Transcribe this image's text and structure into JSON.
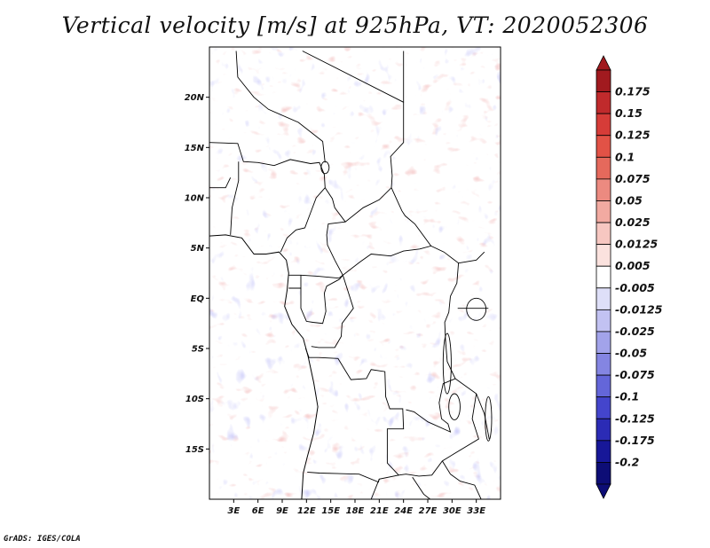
{
  "title": "Vertical velocity [m/s] at 925hPa, VT: 2020052306",
  "credit": "GrADS: IGES/COLA",
  "map": {
    "lon_range": [
      0,
      36
    ],
    "lat_range": [
      -20,
      25
    ],
    "lat_ticks": [
      {
        "value": 20,
        "label": "20N"
      },
      {
        "value": 15,
        "label": "15N"
      },
      {
        "value": 10,
        "label": "10N"
      },
      {
        "value": 5,
        "label": "5N"
      },
      {
        "value": 0,
        "label": "EQ"
      },
      {
        "value": -5,
        "label": "5S"
      },
      {
        "value": -10,
        "label": "10S"
      },
      {
        "value": -15,
        "label": "15S"
      }
    ],
    "lon_ticks": [
      {
        "value": 3,
        "label": "3E"
      },
      {
        "value": 6,
        "label": "6E"
      },
      {
        "value": 9,
        "label": "9E"
      },
      {
        "value": 12,
        "label": "12E"
      },
      {
        "value": 15,
        "label": "15E"
      },
      {
        "value": 18,
        "label": "18E"
      },
      {
        "value": 21,
        "label": "21E"
      },
      {
        "value": 24,
        "label": "24E"
      },
      {
        "value": 27,
        "label": "27E"
      },
      {
        "value": 30,
        "label": "30E"
      },
      {
        "value": 33,
        "label": "33E"
      }
    ],
    "coastline": [
      [
        0,
        6.2
      ],
      [
        2,
        6.3
      ],
      [
        4,
        6.0
      ],
      [
        5.5,
        4.4
      ],
      [
        7,
        4.4
      ],
      [
        8.6,
        4.6
      ],
      [
        9.5,
        3.8
      ],
      [
        9.8,
        2.5
      ],
      [
        9.6,
        0.8
      ],
      [
        9.3,
        -0.8
      ],
      [
        10.2,
        -2.6
      ],
      [
        11.6,
        -4.0
      ],
      [
        12.2,
        -5.8
      ],
      [
        12.9,
        -8.4
      ],
      [
        13.4,
        -10.8
      ],
      [
        12.9,
        -13.4
      ],
      [
        12.1,
        -15.8
      ],
      [
        11.6,
        -17.4
      ],
      [
        11.4,
        -20
      ]
    ],
    "borders": [
      [
        [
          0,
          15.5
        ],
        [
          3.5,
          15.4
        ],
        [
          4.2,
          13.6
        ],
        [
          6,
          13.5
        ],
        [
          8,
          13.2
        ],
        [
          10,
          13.8
        ],
        [
          12.5,
          13.4
        ],
        [
          13.6,
          13.5
        ],
        [
          14.2,
          12.3
        ],
        [
          14.3,
          11.0
        ],
        [
          13.2,
          10.0
        ],
        [
          12.5,
          8.5
        ],
        [
          11.8,
          7.0
        ],
        [
          10.7,
          6.8
        ],
        [
          9.6,
          6.0
        ],
        [
          8.8,
          4.6
        ]
      ],
      [
        [
          2.6,
          6.3
        ],
        [
          2.8,
          9.0
        ],
        [
          3.6,
          11.7
        ],
        [
          3.6,
          13.6
        ]
      ],
      [
        [
          0,
          11.0
        ],
        [
          2.0,
          11.0
        ],
        [
          2.6,
          12.0
        ]
      ],
      [
        [
          3.3,
          24.6
        ],
        [
          3.5,
          22
        ],
        [
          5.5,
          20
        ],
        [
          7.3,
          18.8
        ],
        [
          11,
          17.5
        ],
        [
          14,
          15.6
        ],
        [
          14.3,
          13.5
        ]
      ],
      [
        [
          11.5,
          24.6
        ],
        [
          24,
          19.5
        ],
        [
          24,
          15.5
        ],
        [
          22.4,
          14.1
        ],
        [
          22.6,
          12.2
        ],
        [
          22.5,
          11.0
        ]
      ],
      [
        [
          24,
          24.6
        ],
        [
          24,
          19.5
        ]
      ],
      [
        [
          14.3,
          11.0
        ],
        [
          15.2,
          9.9
        ],
        [
          15.5,
          9.0
        ],
        [
          16.8,
          7.6
        ],
        [
          19,
          9.0
        ],
        [
          21,
          9.8
        ],
        [
          22.5,
          11.0
        ]
      ],
      [
        [
          22.5,
          11.0
        ],
        [
          23.8,
          8.7
        ],
        [
          24.2,
          8.2
        ],
        [
          25.4,
          7.4
        ],
        [
          27.4,
          5.2
        ],
        [
          26,
          4.9
        ],
        [
          24,
          4.7
        ],
        [
          22.4,
          4.2
        ],
        [
          20,
          4.4
        ],
        [
          18.6,
          3.6
        ],
        [
          16.5,
          2.3
        ],
        [
          15.5,
          3.8
        ],
        [
          14.6,
          5.3
        ],
        [
          14.5,
          6.3
        ],
        [
          14.7,
          7.4
        ],
        [
          16.8,
          7.6
        ]
      ],
      [
        [
          9.8,
          2.3
        ],
        [
          11.3,
          2.3
        ],
        [
          13.3,
          2.2
        ],
        [
          16.0,
          2.0
        ],
        [
          16.5,
          2.3
        ]
      ],
      [
        [
          9.8,
          1.0
        ],
        [
          11.3,
          1.0
        ],
        [
          11.3,
          2.3
        ]
      ],
      [
        [
          11.3,
          1.0
        ],
        [
          11.3,
          -1.0
        ],
        [
          12,
          -2.3
        ],
        [
          12.8,
          -2.4
        ],
        [
          14,
          -2.5
        ],
        [
          14.4,
          -1.3
        ],
        [
          14.2,
          0.5
        ],
        [
          14.5,
          1.2
        ],
        [
          16.1,
          1.9
        ],
        [
          16.5,
          2.3
        ]
      ],
      [
        [
          11.9,
          -5.0
        ],
        [
          12.3,
          -5.9
        ],
        [
          13.5,
          -5.9
        ],
        [
          15.9,
          -6.0
        ],
        [
          16.8,
          -7.2
        ],
        [
          17.5,
          -8.1
        ],
        [
          19.4,
          -8.0
        ],
        [
          20.0,
          -7.1
        ],
        [
          21.7,
          -7.3
        ],
        [
          21.8,
          -9.8
        ],
        [
          22.3,
          -11.0
        ],
        [
          23.9,
          -11.0
        ],
        [
          24.0,
          -13.0
        ],
        [
          22.0,
          -13.0
        ],
        [
          22.0,
          -16.4
        ],
        [
          23.4,
          -17.6
        ],
        [
          21.0,
          -18.0
        ],
        [
          20.9,
          -18.3
        ],
        [
          18.5,
          -17.5
        ],
        [
          13.6,
          -17.4
        ],
        [
          12.1,
          -17.3
        ]
      ],
      [
        [
          16.5,
          2.3
        ],
        [
          17.8,
          -1.0
        ],
        [
          16.4,
          -2.5
        ],
        [
          16.3,
          -3.8
        ],
        [
          15.5,
          -4.9
        ],
        [
          14.5,
          -4.9
        ],
        [
          13.5,
          -4.9
        ],
        [
          12.6,
          -4.8
        ]
      ],
      [
        [
          27.4,
          5.2
        ],
        [
          29.0,
          4.6
        ],
        [
          30.8,
          3.5
        ],
        [
          30.6,
          1.5
        ],
        [
          29.8,
          0.2
        ],
        [
          29.6,
          -1.4
        ],
        [
          29.1,
          -2.4
        ],
        [
          29.2,
          -4.2
        ],
        [
          29.4,
          -6.3
        ],
        [
          30.4,
          -8.0
        ],
        [
          28.9,
          -8.5
        ],
        [
          28.4,
          -10.4
        ],
        [
          28.7,
          -12.0
        ],
        [
          29.5,
          -12.5
        ],
        [
          29.8,
          -13.3
        ],
        [
          27.0,
          -12.3
        ],
        [
          25.3,
          -11.3
        ],
        [
          24.3,
          -11.1
        ]
      ],
      [
        [
          30.8,
          3.5
        ],
        [
          33.0,
          3.8
        ],
        [
          34.0,
          4.6
        ]
      ],
      [
        [
          34.5,
          -1.0
        ],
        [
          30.7,
          -1.0
        ]
      ],
      [
        [
          30.4,
          -8.0
        ],
        [
          33.0,
          -9.5
        ],
        [
          34.0,
          -11.5
        ],
        [
          34.6,
          -14.0
        ]
      ],
      [
        [
          33,
          -9.5
        ],
        [
          32.5,
          -12.0
        ],
        [
          33.3,
          -14.0
        ],
        [
          30.2,
          -15.5
        ],
        [
          28.8,
          -16.2
        ],
        [
          27.5,
          -17.6
        ],
        [
          25.9,
          -17.7
        ],
        [
          24.3,
          -17.5
        ],
        [
          23.4,
          -17.6
        ]
      ],
      [
        [
          28.8,
          -16.2
        ],
        [
          29.8,
          -17.5
        ],
        [
          31,
          -18.2
        ],
        [
          32.8,
          -18.6
        ],
        [
          33.6,
          -20
        ]
      ],
      [
        [
          25.1,
          -17.8
        ],
        [
          26.5,
          -19.5
        ],
        [
          27.3,
          -20
        ]
      ],
      [
        [
          20,
          -20
        ],
        [
          21.0,
          -18.0
        ]
      ]
    ],
    "lakes": [
      {
        "lon": 29.4,
        "lat": -6.5,
        "rx": 0.5,
        "ry": 3.0
      },
      {
        "lon": 30.3,
        "lat": -10.8,
        "rx": 0.7,
        "ry": 1.3
      },
      {
        "lon": 33.0,
        "lat": -1.1,
        "rx": 1.2,
        "ry": 1.1
      },
      {
        "lon": 14.3,
        "lat": 13.0,
        "rx": 0.5,
        "ry": 0.6
      },
      {
        "lon": 34.5,
        "lat": -12.0,
        "rx": 0.4,
        "ry": 2.2
      }
    ]
  },
  "colorbar": {
    "labels": [
      "0.175",
      "0.15",
      "0.125",
      "0.1",
      "0.075",
      "0.05",
      "0.025",
      "0.0125",
      "0.005",
      "-0.005",
      "-0.0125",
      "-0.025",
      "-0.05",
      "-0.075",
      "-0.1",
      "-0.125",
      "-0.175",
      "-0.2"
    ],
    "colors": [
      "#a11a1f",
      "#c02a2c",
      "#d63c38",
      "#e25246",
      "#e5695c",
      "#ec8a80",
      "#f2aaa1",
      "#f7c7c1",
      "#fbe2de",
      "#ffffff",
      "#dedff8",
      "#c2c2f2",
      "#a2a3ea",
      "#8485e2",
      "#6466d9",
      "#4445cc",
      "#2b2bb5",
      "#171798",
      "#0d0d76"
    ],
    "under_color": "#0d0d76",
    "over_color": "#a11a1f"
  }
}
